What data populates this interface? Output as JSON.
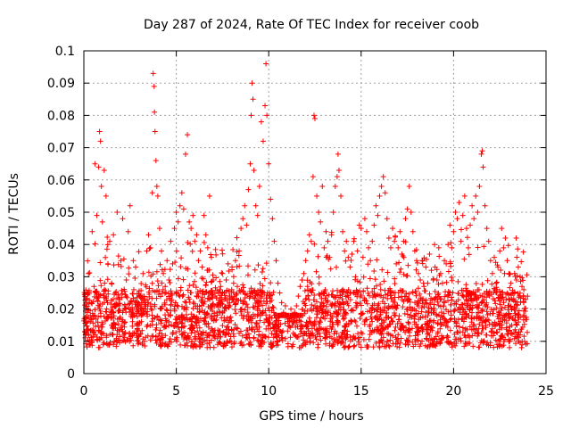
{
  "chart_data": {
    "type": "scatter",
    "title": "Day 287 of 2024, Rate Of TEC Index for receiver coob",
    "xlabel": "GPS time / hours",
    "ylabel": "ROTI / TECUs",
    "xlim": [
      0,
      25
    ],
    "ylim": [
      0,
      0.1
    ],
    "xticks": [
      0,
      5,
      10,
      15,
      20,
      25
    ],
    "xtick_labels": [
      "0",
      "5",
      "10",
      "15",
      "20",
      "25"
    ],
    "yticks": [
      0,
      0.01,
      0.02,
      0.03,
      0.04,
      0.05,
      0.06,
      0.07,
      0.08,
      0.09,
      0.1
    ],
    "ytick_labels": [
      "0",
      "0.01",
      "0.02",
      "0.03",
      "0.04",
      "0.05",
      "0.06",
      "0.07",
      "0.08",
      "0.09",
      "0.1"
    ],
    "grid": true,
    "marker": "+",
    "series": [
      {
        "color": "#ff0000",
        "points": [
          [
            0.05,
            0.013
          ],
          [
            0.15,
            0.022
          ],
          [
            0.25,
            0.031
          ],
          [
            0.35,
            0.018
          ],
          [
            0.45,
            0.044
          ],
          [
            0.55,
            0.027
          ],
          [
            0.6,
            0.065
          ],
          [
            0.7,
            0.049
          ],
          [
            0.8,
            0.064
          ],
          [
            0.85,
            0.075
          ],
          [
            0.9,
            0.072
          ],
          [
            0.95,
            0.058
          ],
          [
            1.0,
            0.047
          ],
          [
            1.1,
            0.063
          ],
          [
            1.2,
            0.055
          ],
          [
            1.3,
            0.034
          ],
          [
            1.4,
            0.041
          ],
          [
            1.5,
            0.028
          ],
          [
            1.6,
            0.043
          ],
          [
            1.7,
            0.025
          ],
          [
            1.8,
            0.05
          ],
          [
            1.9,
            0.021
          ],
          [
            2.0,
            0.035
          ],
          [
            2.1,
            0.048
          ],
          [
            2.2,
            0.016
          ],
          [
            2.3,
            0.029
          ],
          [
            2.4,
            0.044
          ],
          [
            2.5,
            0.052
          ],
          [
            2.6,
            0.019
          ],
          [
            2.7,
            0.026
          ],
          [
            2.8,
            0.033
          ],
          [
            2.9,
            0.015
          ],
          [
            3.0,
            0.024
          ],
          [
            3.1,
            0.018
          ],
          [
            3.2,
            0.031
          ],
          [
            3.3,
            0.022
          ],
          [
            3.4,
            0.038
          ],
          [
            3.5,
            0.043
          ],
          [
            3.6,
            0.039
          ],
          [
            3.7,
            0.056
          ],
          [
            3.75,
            0.093
          ],
          [
            3.8,
            0.089
          ],
          [
            3.82,
            0.081
          ],
          [
            3.85,
            0.075
          ],
          [
            3.9,
            0.066
          ],
          [
            3.95,
            0.058
          ],
          [
            4.0,
            0.055
          ],
          [
            4.1,
            0.045
          ],
          [
            4.2,
            0.038
          ],
          [
            4.3,
            0.031
          ],
          [
            4.4,
            0.027
          ],
          [
            4.5,
            0.035
          ],
          [
            4.6,
            0.029
          ],
          [
            4.7,
            0.041
          ],
          [
            4.8,
            0.034
          ],
          [
            4.9,
            0.045
          ],
          [
            5.0,
            0.05
          ],
          [
            5.1,
            0.047
          ],
          [
            5.2,
            0.052
          ],
          [
            5.3,
            0.056
          ],
          [
            5.4,
            0.051
          ],
          [
            5.5,
            0.068
          ],
          [
            5.6,
            0.074
          ],
          [
            5.7,
            0.047
          ],
          [
            5.8,
            0.045
          ],
          [
            5.9,
            0.049
          ],
          [
            6.0,
            0.041
          ],
          [
            6.1,
            0.043
          ],
          [
            6.2,
            0.035
          ],
          [
            6.3,
            0.038
          ],
          [
            6.4,
            0.033
          ],
          [
            6.5,
            0.049
          ],
          [
            6.6,
            0.043
          ],
          [
            6.7,
            0.039
          ],
          [
            6.8,
            0.055
          ],
          [
            6.9,
            0.036
          ],
          [
            7.0,
            0.029
          ],
          [
            7.1,
            0.024
          ],
          [
            7.2,
            0.019
          ],
          [
            7.3,
            0.022
          ],
          [
            7.4,
            0.027
          ],
          [
            7.5,
            0.031
          ],
          [
            7.6,
            0.025
          ],
          [
            7.7,
            0.029
          ],
          [
            7.8,
            0.034
          ],
          [
            7.9,
            0.021
          ],
          [
            8.0,
            0.026
          ],
          [
            8.1,
            0.028
          ],
          [
            8.2,
            0.035
          ],
          [
            8.3,
            0.027
          ],
          [
            8.4,
            0.038
          ],
          [
            8.5,
            0.045
          ],
          [
            8.6,
            0.048
          ],
          [
            8.7,
            0.052
          ],
          [
            8.8,
            0.046
          ],
          [
            8.9,
            0.057
          ],
          [
            9.0,
            0.065
          ],
          [
            9.05,
            0.08
          ],
          [
            9.1,
            0.09
          ],
          [
            9.15,
            0.085
          ],
          [
            9.2,
            0.063
          ],
          [
            9.3,
            0.052
          ],
          [
            9.4,
            0.049
          ],
          [
            9.5,
            0.058
          ],
          [
            9.6,
            0.078
          ],
          [
            9.7,
            0.072
          ],
          [
            9.8,
            0.083
          ],
          [
            9.85,
            0.096
          ],
          [
            9.9,
            0.08
          ],
          [
            10.0,
            0.065
          ],
          [
            10.1,
            0.054
          ],
          [
            10.2,
            0.048
          ],
          [
            10.3,
            0.041
          ],
          [
            10.4,
            0.035
          ],
          [
            10.5,
            0.028
          ],
          [
            10.6,
            0.025
          ],
          [
            10.7,
            0.022
          ],
          [
            10.8,
            0.019
          ],
          [
            10.9,
            0.021
          ],
          [
            11.0,
            0.018
          ],
          [
            11.1,
            0.017
          ],
          [
            11.2,
            0.02
          ],
          [
            11.3,
            0.016
          ],
          [
            11.4,
            0.019
          ],
          [
            11.5,
            0.021
          ],
          [
            11.6,
            0.024
          ],
          [
            11.7,
            0.027
          ],
          [
            11.8,
            0.029
          ],
          [
            11.9,
            0.031
          ],
          [
            12.0,
            0.035
          ],
          [
            12.1,
            0.038
          ],
          [
            12.2,
            0.043
          ],
          [
            12.3,
            0.041
          ],
          [
            12.4,
            0.061
          ],
          [
            12.45,
            0.08
          ],
          [
            12.5,
            0.079
          ],
          [
            12.6,
            0.055
          ],
          [
            12.7,
            0.05
          ],
          [
            12.8,
            0.047
          ],
          [
            12.9,
            0.058
          ],
          [
            13.0,
            0.039
          ],
          [
            13.1,
            0.044
          ],
          [
            13.2,
            0.041
          ],
          [
            13.3,
            0.036
          ],
          [
            13.4,
            0.043
          ],
          [
            13.5,
            0.05
          ],
          [
            13.6,
            0.058
          ],
          [
            13.7,
            0.061
          ],
          [
            13.75,
            0.068
          ],
          [
            13.8,
            0.063
          ],
          [
            13.9,
            0.055
          ],
          [
            14.0,
            0.044
          ],
          [
            14.1,
            0.038
          ],
          [
            14.2,
            0.041
          ],
          [
            14.3,
            0.036
          ],
          [
            14.4,
            0.033
          ],
          [
            14.5,
            0.037
          ],
          [
            14.6,
            0.041
          ],
          [
            14.7,
            0.03
          ],
          [
            14.8,
            0.038
          ],
          [
            14.9,
            0.046
          ],
          [
            15.0,
            0.045
          ],
          [
            15.1,
            0.036
          ],
          [
            15.2,
            0.048
          ],
          [
            15.3,
            0.044
          ],
          [
            15.4,
            0.039
          ],
          [
            15.5,
            0.035
          ],
          [
            15.6,
            0.041
          ],
          [
            15.7,
            0.046
          ],
          [
            15.8,
            0.052
          ],
          [
            15.9,
            0.049
          ],
          [
            16.0,
            0.055
          ],
          [
            16.1,
            0.058
          ],
          [
            16.2,
            0.061
          ],
          [
            16.3,
            0.056
          ],
          [
            16.4,
            0.048
          ],
          [
            16.5,
            0.042
          ],
          [
            16.6,
            0.039
          ],
          [
            16.7,
            0.045
          ],
          [
            16.8,
            0.041
          ],
          [
            16.9,
            0.034
          ],
          [
            17.0,
            0.039
          ],
          [
            17.1,
            0.044
          ],
          [
            17.2,
            0.037
          ],
          [
            17.3,
            0.041
          ],
          [
            17.4,
            0.048
          ],
          [
            17.5,
            0.051
          ],
          [
            17.6,
            0.058
          ],
          [
            17.7,
            0.05
          ],
          [
            17.8,
            0.044
          ],
          [
            17.9,
            0.038
          ],
          [
            18.0,
            0.035
          ],
          [
            18.1,
            0.031
          ],
          [
            18.2,
            0.029
          ],
          [
            18.3,
            0.035
          ],
          [
            18.4,
            0.027
          ],
          [
            18.5,
            0.033
          ],
          [
            18.6,
            0.028
          ],
          [
            18.7,
            0.037
          ],
          [
            18.8,
            0.032
          ],
          [
            18.9,
            0.029
          ],
          [
            19.0,
            0.033
          ],
          [
            19.1,
            0.029
          ],
          [
            19.2,
            0.039
          ],
          [
            19.3,
            0.031
          ],
          [
            19.4,
            0.028
          ],
          [
            19.5,
            0.035
          ],
          [
            19.6,
            0.034
          ],
          [
            19.7,
            0.04
          ],
          [
            19.8,
            0.046
          ],
          [
            19.9,
            0.039
          ],
          [
            20.0,
            0.044
          ],
          [
            20.1,
            0.05
          ],
          [
            20.2,
            0.048
          ],
          [
            20.3,
            0.053
          ],
          [
            20.4,
            0.041
          ],
          [
            20.5,
            0.049
          ],
          [
            20.6,
            0.055
          ],
          [
            20.7,
            0.045
          ],
          [
            20.8,
            0.039
          ],
          [
            20.9,
            0.046
          ],
          [
            21.0,
            0.052
          ],
          [
            21.1,
            0.048
          ],
          [
            21.2,
            0.055
          ],
          [
            21.3,
            0.05
          ],
          [
            21.4,
            0.058
          ],
          [
            21.5,
            0.068
          ],
          [
            21.55,
            0.069
          ],
          [
            21.6,
            0.064
          ],
          [
            21.7,
            0.052
          ],
          [
            21.8,
            0.045
          ],
          [
            21.9,
            0.041
          ],
          [
            22.0,
            0.035
          ],
          [
            22.1,
            0.031
          ],
          [
            22.2,
            0.036
          ],
          [
            22.3,
            0.028
          ],
          [
            22.4,
            0.033
          ],
          [
            22.5,
            0.038
          ],
          [
            22.6,
            0.045
          ],
          [
            22.7,
            0.039
          ],
          [
            22.8,
            0.042
          ],
          [
            22.9,
            0.035
          ],
          [
            23.0,
            0.031
          ],
          [
            23.1,
            0.028
          ],
          [
            23.2,
            0.025
          ],
          [
            23.3,
            0.031
          ],
          [
            23.4,
            0.029
          ],
          [
            23.5,
            0.033
          ],
          [
            23.6,
            0.03
          ],
          [
            23.7,
            0.027
          ],
          [
            23.8,
            0.026
          ],
          [
            23.9,
            0.023
          ]
        ]
      }
    ]
  }
}
